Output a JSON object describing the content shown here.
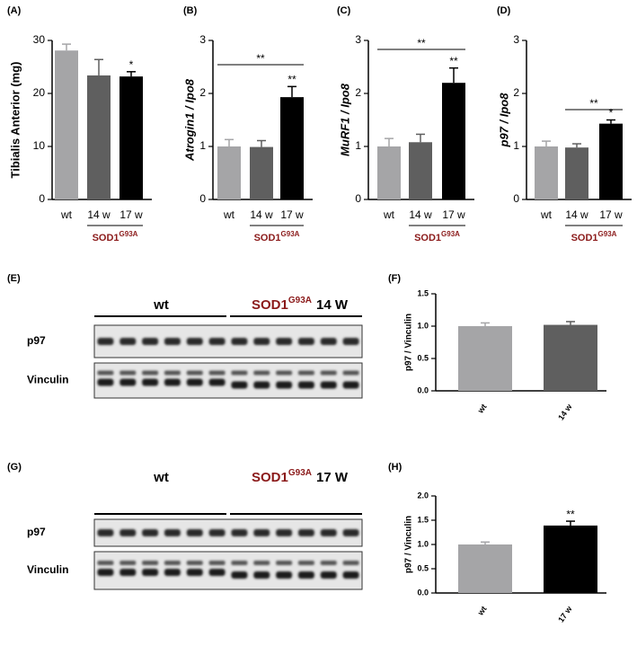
{
  "chart_data": [
    {
      "type": "bar",
      "panel": "(A)",
      "ylabel": "Tibialis Anterior (mg)",
      "categories": [
        "wt",
        "14 w",
        "17 w"
      ],
      "values": [
        28.1,
        23.4,
        23.2
      ],
      "errors": [
        1.2,
        3.0,
        0.9
      ],
      "colors": [
        "#a5a5a7",
        "#5f5f5f",
        "#000000"
      ],
      "ylim": [
        0,
        30
      ],
      "yticks": [
        0,
        10,
        20,
        30
      ],
      "annotations": [
        "*"
      ],
      "group_label": "SOD1",
      "group_label_sup": "G93A"
    },
    {
      "type": "bar",
      "panel": "(B)",
      "ylabel": "Atrogin1 / Ipo8",
      "categories": [
        "wt",
        "14 w",
        "17 w"
      ],
      "values": [
        1.0,
        0.99,
        1.93
      ],
      "errors": [
        0.13,
        0.12,
        0.2
      ],
      "colors": [
        "#a5a5a7",
        "#5f5f5f",
        "#000000"
      ],
      "ylim": [
        0,
        3
      ],
      "yticks": [
        0,
        1,
        2,
        3
      ],
      "annotations": [
        "**"
      ],
      "bracket_label": "**",
      "group_label": "SOD1",
      "group_label_sup": "G93A"
    },
    {
      "type": "bar",
      "panel": "(C)",
      "ylabel": "MuRF1 / Ipo8",
      "categories": [
        "wt",
        "14 w",
        "17 w"
      ],
      "values": [
        1.0,
        1.08,
        2.2
      ],
      "errors": [
        0.15,
        0.15,
        0.28
      ],
      "colors": [
        "#a5a5a7",
        "#5f5f5f",
        "#000000"
      ],
      "ylim": [
        0,
        3
      ],
      "yticks": [
        0,
        1,
        2,
        3
      ],
      "annotations": [
        "**"
      ],
      "bracket_label": "**",
      "group_label": "SOD1",
      "group_label_sup": "G93A"
    },
    {
      "type": "bar",
      "panel": "(D)",
      "ylabel": "p97 / Ipo8",
      "categories": [
        "wt",
        "14 w",
        "17 w"
      ],
      "values": [
        1.0,
        0.98,
        1.43
      ],
      "errors": [
        0.1,
        0.07,
        0.07
      ],
      "colors": [
        "#a5a5a7",
        "#5f5f5f",
        "#000000"
      ],
      "ylim": [
        0,
        3
      ],
      "yticks": [
        0,
        1,
        2,
        3
      ],
      "annotations": [
        "*"
      ],
      "bracket_label": "**",
      "group_label": "SOD1",
      "group_label_sup": "G93A"
    },
    {
      "type": "bar",
      "panel": "(F)",
      "ylabel": "p97 / Vinculin",
      "categories": [
        "wt",
        "14 w"
      ],
      "values": [
        1.0,
        1.02
      ],
      "errors": [
        0.05,
        0.05
      ],
      "colors": [
        "#a5a5a7",
        "#5f5f5f"
      ],
      "ylim": [
        0,
        1.5
      ],
      "yticks": [
        {
          "value": 0,
          "label": "0.0"
        },
        {
          "value": 0.5,
          "label": "0.5"
        },
        {
          "value": 1,
          "label": "1.0"
        },
        {
          "value": 1.5,
          "label": "1.5"
        }
      ]
    },
    {
      "type": "bar",
      "panel": "(H)",
      "ylabel": "p97 / Vinculin",
      "categories": [
        "wt",
        "17 w"
      ],
      "values": [
        1.0,
        1.39
      ],
      "errors": [
        0.05,
        0.09
      ],
      "colors": [
        "#a5a5a7",
        "#000000"
      ],
      "ylim": [
        0,
        2
      ],
      "yticks": [
        {
          "value": 0,
          "label": "0.0"
        },
        {
          "value": 0.5,
          "label": "0.5"
        },
        {
          "value": 1,
          "label": "1.0"
        },
        {
          "value": 1.5,
          "label": "1.5"
        },
        {
          "value": 2,
          "label": "2.0"
        }
      ],
      "annotations": [
        "**"
      ]
    }
  ],
  "blots": [
    {
      "panel": "(E)",
      "left_group": "wt",
      "right_group": "SOD1",
      "right_group_sup": "G93A",
      "right_group_suffix": "14 W",
      "rows": [
        "p97",
        "Vinculin"
      ]
    },
    {
      "panel": "(G)",
      "left_group": "wt",
      "right_group": "SOD1",
      "right_group_sup": "G93A",
      "right_group_suffix": "17 W",
      "rows": [
        "p97",
        "Vinculin"
      ]
    }
  ]
}
